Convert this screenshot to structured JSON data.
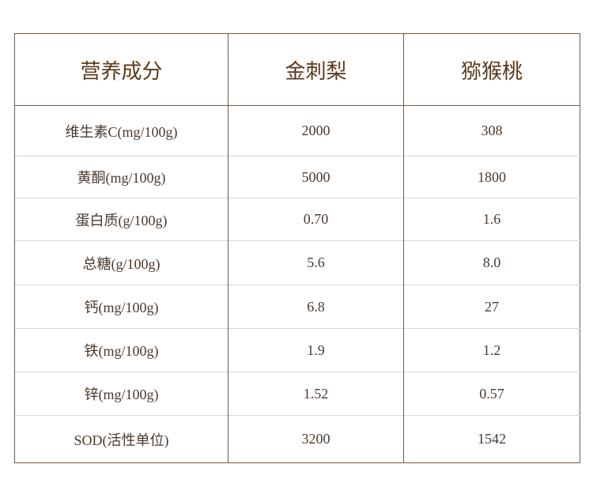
{
  "table": {
    "header": [
      "营养成分",
      "金刺梨",
      "猕猴桃"
    ],
    "rows": [
      [
        "维生素C(mg/100g)",
        "2000",
        "308"
      ],
      [
        "黄酮(mg/100g)",
        "5000",
        "1800"
      ],
      [
        "蛋白质(g/100g)",
        "0.70",
        "1.6"
      ],
      [
        "总糖(g/100g)",
        "5.6",
        "8.0"
      ],
      [
        "钙(mg/100g)",
        "6.8",
        "27"
      ],
      [
        "铁(mg/100g)",
        "1.9",
        "1.2"
      ],
      [
        "锌(mg/100g)",
        "1.52",
        "0.57"
      ],
      [
        "SOD(活性单位)",
        "3200",
        "1542"
      ]
    ]
  }
}
